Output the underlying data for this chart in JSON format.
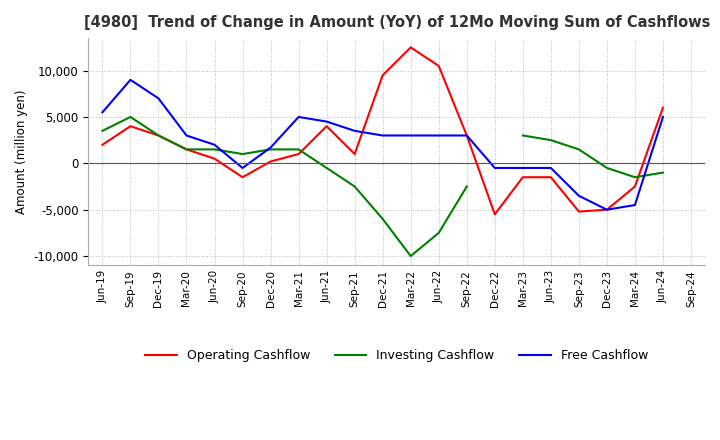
{
  "title": "[4980]  Trend of Change in Amount (YoY) of 12Mo Moving Sum of Cashflows",
  "ylabel": "Amount (million yen)",
  "ylim": [
    -11000,
    13500
  ],
  "yticks": [
    -10000,
    -5000,
    0,
    5000,
    10000
  ],
  "x_labels": [
    "Jun-19",
    "Sep-19",
    "Dec-19",
    "Mar-20",
    "Jun-20",
    "Sep-20",
    "Dec-20",
    "Mar-21",
    "Jun-21",
    "Sep-21",
    "Dec-21",
    "Mar-22",
    "Jun-22",
    "Sep-22",
    "Dec-22",
    "Mar-23",
    "Jun-23",
    "Sep-23",
    "Dec-23",
    "Mar-24",
    "Jun-24",
    "Sep-24"
  ],
  "operating": [
    2000,
    4000,
    3000,
    1500,
    500,
    -1500,
    200,
    1000,
    4000,
    1000,
    9500,
    12500,
    10500,
    3000,
    -5500,
    -1500,
    -1500,
    -5200,
    -5000,
    -2500,
    6000,
    null
  ],
  "investing": [
    3500,
    5000,
    3000,
    1500,
    1500,
    1000,
    1500,
    1500,
    -500,
    -2500,
    -6000,
    -10000,
    -7500,
    -2500,
    null,
    3000,
    2500,
    1500,
    -500,
    -1500,
    -1000,
    null
  ],
  "free": [
    5500,
    9000,
    7000,
    3000,
    2000,
    -500,
    1700,
    5000,
    4500,
    3500,
    3000,
    3000,
    3000,
    3000,
    -500,
    -500,
    -500,
    -3500,
    -5000,
    -4500,
    5000,
    null
  ],
  "colors": {
    "operating": "#ff0000",
    "investing": "#008000",
    "free": "#0000ff"
  },
  "legend": [
    "Operating Cashflow",
    "Investing Cashflow",
    "Free Cashflow"
  ],
  "background_color": "#ffffff",
  "grid_color": "#aaaaaa"
}
